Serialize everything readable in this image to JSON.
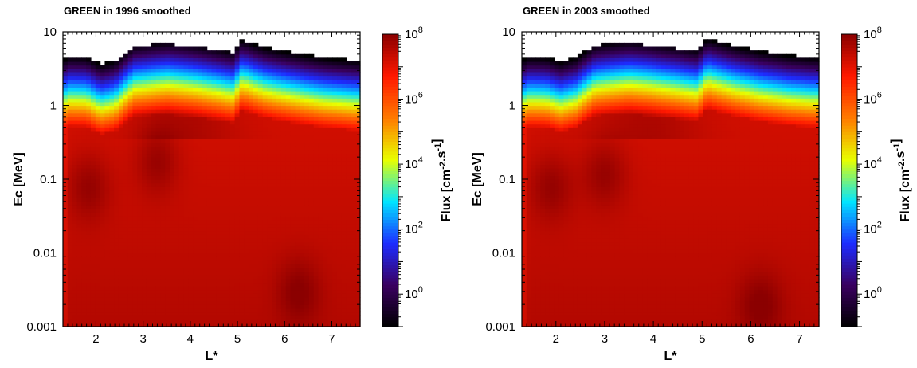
{
  "chart_data": [
    {
      "type": "heatmap",
      "title": "GREEN in 1996 smoothed",
      "xlabel": "L*",
      "ylabel": "Ec [MeV]",
      "colorbar_label": "Flux [cm-2.s-1]",
      "xlim": [
        1.3,
        7.6
      ],
      "ylim": [
        0.001,
        10
      ],
      "y_scale": "log",
      "x_ticks": [
        "2",
        "3",
        "4",
        "5",
        "6",
        "7"
      ],
      "y_ticks": [
        "0.001",
        "0.01",
        "0.1",
        "1",
        "10"
      ],
      "colorbar_range": [
        1,
        1000000000
      ],
      "colorbar_ticks": [
        "10^0",
        "10^2",
        "10^4",
        "10^6",
        "10^8"
      ],
      "colormap": [
        "#000000",
        "#3a0060",
        "#1d2cff",
        "#00e5ff",
        "#e8ff00",
        "#ff7a00",
        "#ff1800",
        "#8b0000"
      ],
      "upper_edge_mev": [
        [
          1.4,
          4.7
        ],
        [
          1.8,
          4.6
        ],
        [
          2.1,
          3.6
        ],
        [
          2.4,
          4.0
        ],
        [
          2.8,
          6.5
        ],
        [
          3.5,
          6.9
        ],
        [
          4.2,
          6.1
        ],
        [
          4.9,
          5.3
        ],
        [
          5.1,
          7.7
        ],
        [
          5.6,
          6.1
        ],
        [
          6.2,
          5.2
        ],
        [
          6.8,
          4.5
        ],
        [
          7.5,
          4.1
        ]
      ],
      "high_flux_hotspots": [
        {
          "L": 1.85,
          "E_mev": 0.08
        },
        {
          "L": 3.3,
          "E_mev": 0.18
        },
        {
          "L": 6.3,
          "E_mev": 0.003
        }
      ]
    },
    {
      "type": "heatmap",
      "title": "GREEN in 2003 smoothed",
      "xlabel": "L*",
      "ylabel": "Ec [MeV]",
      "colorbar_label": "Flux [cm-2.s-1]",
      "xlim": [
        1.3,
        7.4
      ],
      "ylim": [
        0.001,
        10
      ],
      "y_scale": "log",
      "x_ticks": [
        "2",
        "3",
        "4",
        "5",
        "6",
        "7"
      ],
      "y_ticks": [
        "0.001",
        "0.01",
        "0.1",
        "1",
        "10"
      ],
      "colorbar_range": [
        1,
        1000000000
      ],
      "colorbar_ticks": [
        "10^0",
        "10^2",
        "10^4",
        "10^6",
        "10^8"
      ],
      "colormap": [
        "#000000",
        "#3a0060",
        "#1d2cff",
        "#00e5ff",
        "#e8ff00",
        "#ff7a00",
        "#ff1800",
        "#8b0000"
      ],
      "upper_edge_mev": [
        [
          1.4,
          4.6
        ],
        [
          1.8,
          4.5
        ],
        [
          2.1,
          3.9
        ],
        [
          2.4,
          4.4
        ],
        [
          2.8,
          6.6
        ],
        [
          3.5,
          7.0
        ],
        [
          4.2,
          6.2
        ],
        [
          4.9,
          5.6
        ],
        [
          5.1,
          8.0
        ],
        [
          5.6,
          6.6
        ],
        [
          6.2,
          5.5
        ],
        [
          6.8,
          4.8
        ],
        [
          7.3,
          4.5
        ]
      ],
      "high_flux_hotspots": [
        {
          "L": 1.9,
          "E_mev": 0.08
        },
        {
          "L": 3.0,
          "E_mev": 0.12
        },
        {
          "L": 6.2,
          "E_mev": 0.002
        }
      ]
    }
  ]
}
